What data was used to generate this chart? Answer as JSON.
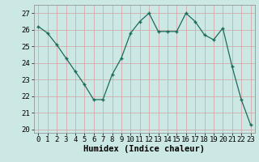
{
  "x": [
    0,
    1,
    2,
    3,
    4,
    5,
    6,
    7,
    8,
    9,
    10,
    11,
    12,
    13,
    14,
    15,
    16,
    17,
    18,
    19,
    20,
    21,
    22,
    23
  ],
  "y": [
    26.2,
    25.8,
    25.1,
    24.3,
    23.5,
    22.7,
    21.8,
    21.8,
    23.3,
    24.3,
    25.8,
    26.5,
    27.0,
    25.9,
    25.9,
    25.9,
    27.0,
    26.5,
    25.7,
    25.4,
    26.1,
    23.8,
    21.8,
    20.3
  ],
  "xlabel": "Humidex (Indice chaleur)",
  "ylim": [
    19.8,
    27.5
  ],
  "yticks": [
    20,
    21,
    22,
    23,
    24,
    25,
    26,
    27
  ],
  "xticks": [
    0,
    1,
    2,
    3,
    4,
    5,
    6,
    7,
    8,
    9,
    10,
    11,
    12,
    13,
    14,
    15,
    16,
    17,
    18,
    19,
    20,
    21,
    22,
    23
  ],
  "line_color": "#1a6b5a",
  "marker_color": "#1a6b5a",
  "bg_color": "#cce8e4",
  "grid_color": "#c0d8d4",
  "tick_label_fontsize": 6.5,
  "xlabel_fontsize": 7.5
}
